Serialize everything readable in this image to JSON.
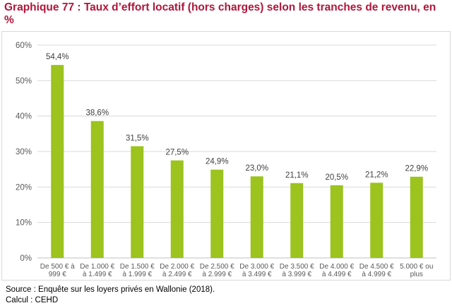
{
  "title": "Graphique 77 : Taux d’effort locatif (hors charges) selon les tranches de revenu, en %",
  "source": "Source : Enquête sur les loyers privés en Wallonie (2018).",
  "calcul": "Calcul : CEHD",
  "colors": {
    "bar": "#9cc31e",
    "title": "#b0163a",
    "grid": "#d9d9d9",
    "axis_text": "#595959"
  },
  "chart_data": {
    "type": "bar",
    "title": "Graphique 77 : Taux d’effort locatif (hors charges) selon les tranches de revenu, en %",
    "categories": [
      [
        "De 500 € à",
        "999 €"
      ],
      [
        "De 1.000 €",
        "à 1.499 €"
      ],
      [
        "De 1.500 €",
        "à 1.999 €"
      ],
      [
        "De 2.000 €",
        "à 2.499 €"
      ],
      [
        "De 2.500 €",
        "à 2.999 €"
      ],
      [
        "De 3.000 €",
        "à 3.499 €"
      ],
      [
        "De 3.500 €",
        "à 3.999 €"
      ],
      [
        "De 4.000 €",
        "à 4.499 €"
      ],
      [
        "De 4.500 €",
        "à 4.999 €"
      ],
      [
        "5.000 € ou",
        "plus"
      ]
    ],
    "values": [
      54.4,
      38.6,
      31.5,
      27.5,
      24.9,
      23.0,
      21.1,
      20.5,
      21.2,
      22.9
    ],
    "data_labels": [
      "54,4%",
      "38,6%",
      "31,5%",
      "27,5%",
      "24,9%",
      "23,0%",
      "21,1%",
      "20,5%",
      "21,2%",
      "22,9%"
    ],
    "ylim": [
      0,
      60
    ],
    "yticks": [
      0,
      10,
      20,
      30,
      40,
      50,
      60
    ],
    "ytick_labels": [
      "0%",
      "10%",
      "20%",
      "30%",
      "40%",
      "50%",
      "60%"
    ],
    "grid": true,
    "legend": false
  }
}
